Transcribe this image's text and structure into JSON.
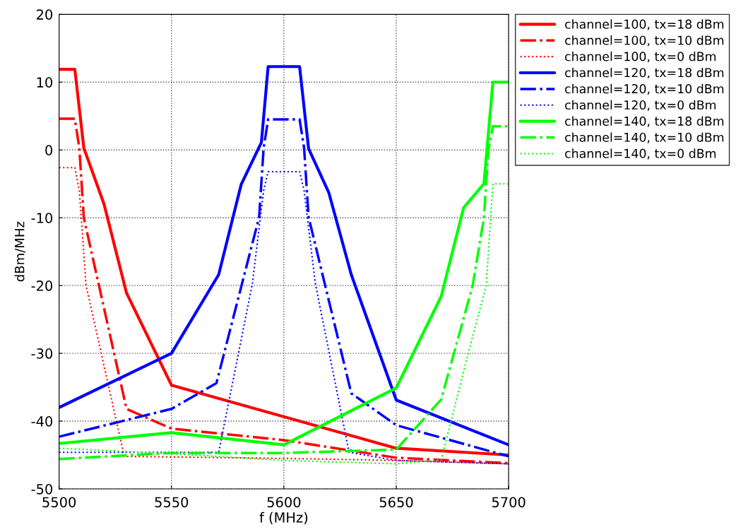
{
  "chart_data": {
    "type": "line",
    "xlabel": "f (MHz)",
    "ylabel": "dBm/MHz",
    "xlim": [
      5500,
      5700
    ],
    "ylim": [
      -50,
      20
    ],
    "xticks": [
      5500,
      5550,
      5600,
      5650,
      5700
    ],
    "yticks": [
      -50,
      -40,
      -30,
      -20,
      -10,
      0,
      10,
      20
    ],
    "grid": true,
    "legend": "top right",
    "marker": "none",
    "series": [
      {
        "name": "channel=100, tx=18 dBm",
        "color": "#ff0000",
        "line_style": "solid",
        "x": [
          5500,
          5507,
          5511,
          5520,
          5530,
          5550,
          5650,
          5700
        ],
        "values": [
          11.9,
          11.9,
          0.3,
          -8,
          -21.1,
          -34.7,
          -44,
          -45
        ]
      },
      {
        "name": "channel=100, tx=10 dBm",
        "color": "#ff0000",
        "line_style": "dashdot",
        "x": [
          5500,
          5507,
          5509,
          5511,
          5530,
          5550,
          5600,
          5650,
          5700
        ],
        "values": [
          4.6,
          4.6,
          0.3,
          -10,
          -38.2,
          -41.1,
          -42.8,
          -45.4,
          -46.2
        ]
      },
      {
        "name": "channel=100, tx=0 dBm",
        "color": "#ff0000",
        "line_style": "dotted",
        "x": [
          5500,
          5507,
          5509,
          5512,
          5529,
          5600,
          5650,
          5700
        ],
        "values": [
          -2.6,
          -2.6,
          -6,
          -20,
          -45.2,
          -45.5,
          -45.8,
          -46.3
        ]
      },
      {
        "name": "channel=120, tx=18 dBm",
        "color": "#0000ff",
        "line_style": "solid",
        "x": [
          5500,
          5550,
          5571,
          5581,
          5590,
          5593,
          5607,
          5611,
          5620,
          5630,
          5650,
          5700
        ],
        "values": [
          -38,
          -30,
          -18.4,
          -5.1,
          1.1,
          12.3,
          12.3,
          0.2,
          -6.3,
          -18.4,
          -36.9,
          -43.5
        ]
      },
      {
        "name": "channel=120, tx=10 dBm",
        "color": "#0000ff",
        "line_style": "dashdot",
        "x": [
          5500,
          5550,
          5570,
          5589,
          5591,
          5593,
          5607,
          5609,
          5611,
          5630,
          5650,
          5700
        ],
        "values": [
          -42.3,
          -38.2,
          -34.4,
          -9.9,
          0.3,
          4.5,
          4.5,
          0.3,
          -9.9,
          -35.9,
          -40.6,
          -45.2
        ]
      },
      {
        "name": "channel=120, tx=0 dBm",
        "color": "#0000ff",
        "line_style": "dotted",
        "x": [
          5500,
          5571,
          5586,
          5591,
          5593,
          5607,
          5609,
          5614,
          5629,
          5650,
          5700
        ],
        "values": [
          -44.6,
          -44.6,
          -19.7,
          -6,
          -3.2,
          -3.2,
          -6,
          -19.7,
          -44.6,
          -45.8,
          -46.3
        ]
      },
      {
        "name": "channel=140, tx=18 dBm",
        "color": "#00ff00",
        "line_style": "solid",
        "x": [
          5500,
          5550,
          5600,
          5650,
          5670,
          5680,
          5689,
          5693,
          5700
        ],
        "values": [
          -43.3,
          -41.7,
          -43.5,
          -35.1,
          -21.6,
          -8.5,
          -5,
          10,
          10
        ]
      },
      {
        "name": "channel=140, tx=10 dBm",
        "color": "#00ff00",
        "line_style": "dashdot",
        "x": [
          5500,
          5550,
          5600,
          5650,
          5670,
          5684,
          5689,
          5691,
          5693,
          5700
        ],
        "values": [
          -45.6,
          -44.7,
          -44.7,
          -44.2,
          -36.8,
          -20,
          -10,
          0,
          3.5,
          3.5
        ]
      },
      {
        "name": "channel=140, tx=0 dBm",
        "color": "#00ff00",
        "line_style": "dotted",
        "x": [
          5500,
          5550,
          5600,
          5650,
          5670,
          5682,
          5690,
          5692,
          5693,
          5700
        ],
        "values": [
          -44,
          -44.8,
          -45.8,
          -46.3,
          -45.7,
          -30,
          -20,
          -10,
          -5,
          -5
        ]
      }
    ]
  }
}
